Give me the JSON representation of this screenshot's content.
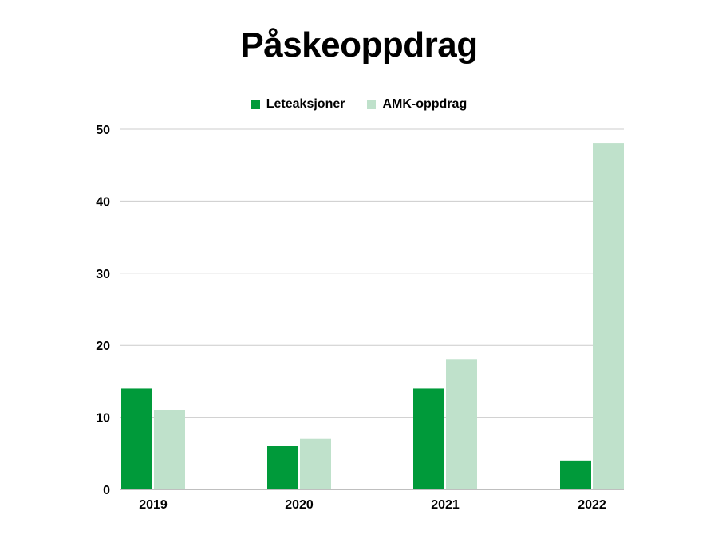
{
  "chart_data": {
    "type": "bar",
    "title": "Påskeoppdrag",
    "xlabel": "",
    "ylabel": "",
    "categories": [
      "2019",
      "2020",
      "2021",
      "2022"
    ],
    "series": [
      {
        "name": "Leteaksjoner",
        "values": [
          14,
          6,
          14,
          4
        ],
        "color": "#009a3a"
      },
      {
        "name": "AMK-oppdrag",
        "values": [
          11,
          7,
          18,
          48
        ],
        "color": "#bfe1cb"
      }
    ],
    "ylim": [
      0,
      50
    ],
    "yticks": [
      0,
      10,
      20,
      30,
      40,
      50
    ],
    "grid": true,
    "legend_position": "top"
  }
}
